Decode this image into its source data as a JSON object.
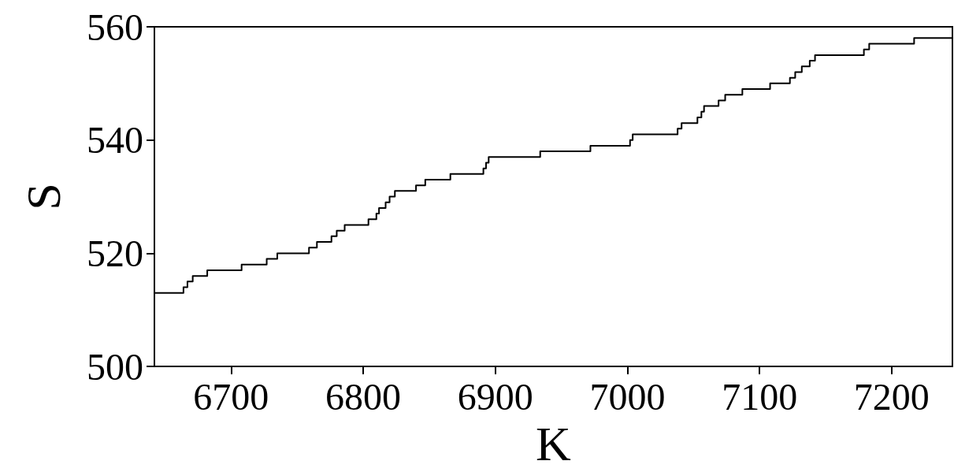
{
  "chart_data": {
    "type": "step",
    "xlabel": "K",
    "ylabel": "S",
    "x": [
      6642,
      6664,
      6667,
      6671,
      6682,
      6708,
      6727,
      6735,
      6759,
      6765,
      6776,
      6780,
      6786,
      6804,
      6810,
      6812,
      6817,
      6820,
      6824,
      6840,
      6847,
      6866,
      6891,
      6893,
      6895,
      6934,
      6972,
      7002,
      7004,
      7038,
      7041,
      7053,
      7056,
      7058,
      7069,
      7074,
      7087,
      7108,
      7123,
      7127,
      7132,
      7138,
      7142,
      7179,
      7183,
      7217,
      7246
    ],
    "series": [
      {
        "color": "#000000",
        "values": [
          513,
          514,
          515,
          516,
          517,
          518,
          519,
          520,
          521,
          522,
          523,
          524,
          525,
          526,
          527,
          528,
          529,
          530,
          531,
          532,
          533,
          534,
          535,
          536,
          537,
          538,
          539,
          540,
          541,
          542,
          543,
          544,
          545,
          546,
          547,
          548,
          549,
          550,
          551,
          552,
          553,
          554,
          555,
          556,
          557,
          558,
          558
        ]
      }
    ],
    "xlim": [
      6642,
      7246
    ],
    "ylim": [
      500,
      560
    ],
    "xticks": [
      6700,
      6800,
      6900,
      7000,
      7100,
      7200
    ],
    "yticks": [
      500,
      520,
      540,
      560
    ],
    "grid": false,
    "marker": "none",
    "line_style": "solid"
  }
}
